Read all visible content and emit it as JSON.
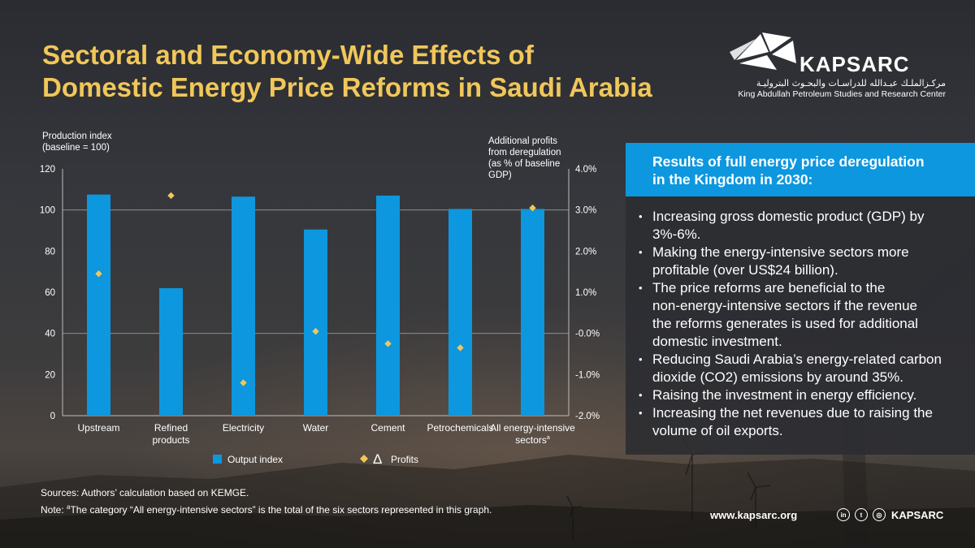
{
  "title": {
    "line1": "Sectoral and Economy-Wide Effects of",
    "line2": "Domestic Energy Price Reforms in Saudi Arabia"
  },
  "logo": {
    "name": "KAPSARC",
    "arabic": "مركـزالملـك عبـدالله للدراسـات والبحـوث البتروليـة",
    "subtitle": "King Abdullah Petroleum Studies and Research Center"
  },
  "chart_data": {
    "type": "bar",
    "title": "",
    "left_axis_label": [
      "Production index",
      "(baseline = 100)"
    ],
    "right_axis_label": [
      "Additional profits",
      "from deregulation",
      "(as % of baseline",
      "GDP)"
    ],
    "categories": [
      "Upstream",
      "Refined products",
      "Electricity",
      "Water",
      "Cement",
      "Petrochemicals",
      "All energy-intensive sectors"
    ],
    "category_labels": [
      [
        "Upstream"
      ],
      [
        "Refined",
        "products"
      ],
      [
        "Electricity"
      ],
      [
        "Water"
      ],
      [
        "Cement"
      ],
      [
        "Petrochemicals"
      ],
      [
        "All energy-intensive",
        "sectors"
      ]
    ],
    "category_superscripts": [
      "",
      "",
      "",
      "",
      "",
      "",
      "a"
    ],
    "left_ylim": [
      0,
      120
    ],
    "left_ticks": [
      0,
      20,
      40,
      60,
      80,
      100,
      120
    ],
    "right_ylim": [
      -2.0,
      4.0
    ],
    "right_ticks": [
      -2.0,
      -1.0,
      0.0,
      1.0,
      2.0,
      3.0,
      4.0
    ],
    "right_tick_labels": [
      "-2.0%",
      "-1.0%",
      "-0.0%",
      "1.0%",
      "2.0%",
      "3.0%",
      "4.0%"
    ],
    "gridlines_at": [
      40,
      100
    ],
    "series": [
      {
        "name": "Output index",
        "kind": "bar",
        "axis": "left",
        "color": "#0d97df",
        "values": [
          107.5,
          62,
          106.5,
          90.5,
          107,
          100.5,
          100.5
        ]
      },
      {
        "name": "Profits",
        "legend_symbol": "Δ",
        "kind": "scatter",
        "marker": "diamond",
        "axis": "right",
        "color": "#f1c75a",
        "values": [
          1.45,
          3.35,
          -1.2,
          0.05,
          -0.25,
          -0.35,
          3.05
        ]
      }
    ],
    "legend_position": "bottom"
  },
  "panel": {
    "heading_line1": "Results of full energy price deregulation",
    "heading_line2": "in the Kingdom in 2030:",
    "bullets": [
      [
        "Increasing gross domestic product (GDP) by",
        "3%-6%."
      ],
      [
        "Making the energy-intensive sectors more",
        "profitable (over US$24 billion)."
      ],
      [
        "The price reforms are beneficial to the",
        "non-energy-intensive sectors if the revenue",
        "the reforms generates is used for additional",
        "domestic investment."
      ],
      [
        "Reducing Saudi Arabia’s energy-related carbon",
        "dioxide (CO2) emissions by around 35%."
      ],
      [
        "Raising the investment in energy efficiency."
      ],
      [
        "Increasing the net revenues due to raising the",
        "volume of oil exports."
      ]
    ]
  },
  "sources": {
    "line1": "Sources: Authors’ calculation based on KEMGE.",
    "line2_prefix": "Note: ",
    "line2_sup": "a",
    "line2_rest": "The category “All energy-intensive sectors” is the total of the six sectors represented in this graph."
  },
  "footer": {
    "website": "www.kapsarc.org",
    "handle": "KAPSARC",
    "icons": [
      "linkedin-icon",
      "twitter-icon",
      "instagram-icon"
    ],
    "icon_glyphs": [
      "in",
      "t",
      "◎"
    ]
  },
  "colors": {
    "title": "#f1c75a",
    "accent_blue": "#0d97df",
    "diamond": "#f1c75a"
  }
}
